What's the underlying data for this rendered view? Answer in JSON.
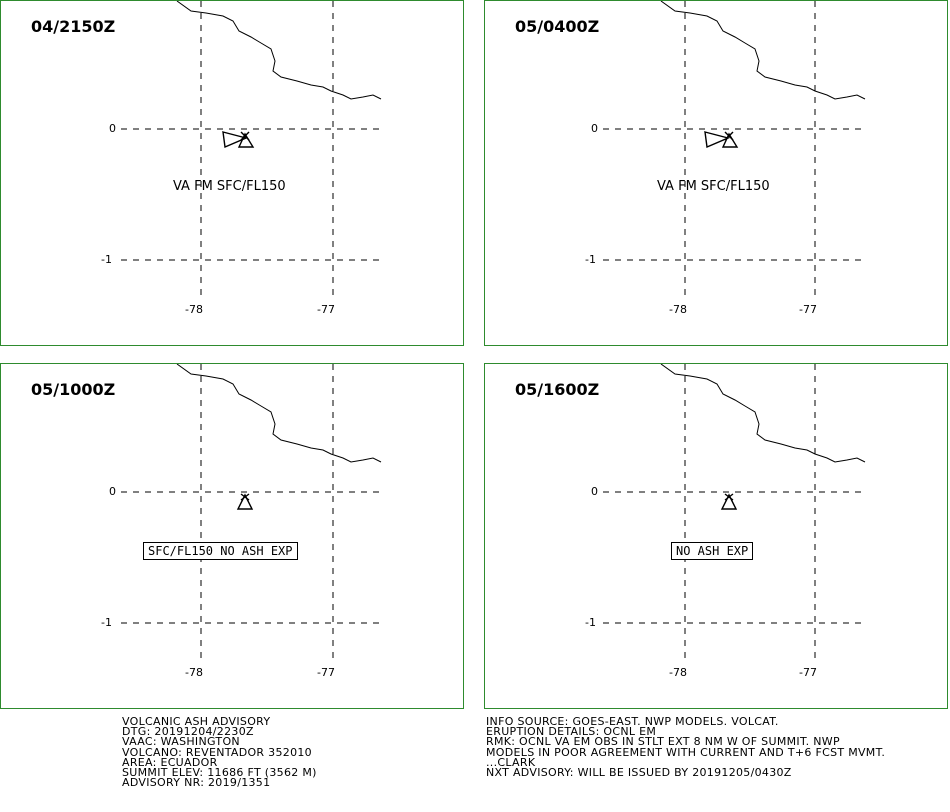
{
  "panels": [
    {
      "time": "04/2150Z",
      "lat_labels": [
        "0",
        "-1"
      ],
      "lon_labels": [
        "-78",
        "-77"
      ],
      "ash_label": "VA FM SFC/FL150",
      "plume_shown": true
    },
    {
      "time": "05/0400Z",
      "lat_labels": [
        "0",
        "-1"
      ],
      "lon_labels": [
        "-78",
        "-77"
      ],
      "ash_label": "VA FM SFC/FL150",
      "plume_shown": true
    },
    {
      "time": "05/1000Z",
      "lat_labels": [
        "0",
        "-1"
      ],
      "lon_labels": [
        "-78",
        "-77"
      ],
      "ash_label": "SFC/FL150 NO ASH EXP",
      "plume_shown": false
    },
    {
      "time": "05/1600Z",
      "lat_labels": [
        "0",
        "-1"
      ],
      "lon_labels": [
        "-78",
        "-77"
      ],
      "ash_label": "NO ASH EXP",
      "plume_shown": false
    }
  ],
  "advisory_left": [
    "VOLCANIC ASH ADVISORY",
    "DTG: 20191204/2230Z",
    "VAAC: WASHINGTON",
    "VOLCANO: REVENTADOR 352010",
    "AREA: ECUADOR",
    "SUMMIT ELEV: 11686 FT (3562 M)",
    "ADVISORY NR: 2019/1351"
  ],
  "advisory_right": [
    "INFO SOURCE: GOES-EAST. NWP MODELS. VOLCAT.",
    "ERUPTION DETAILS: OCNL EM",
    "RMK: OCNL VA EM OBS IN STLT EXT 8 NM W OF SUMMIT. NWP",
    "MODELS IN POOR AGREEMENT WITH CURRENT AND T+6 FCST MVMT.",
    "...CLARK",
    "NXT ADVISORY: WILL BE ISSUED BY 20191205/0430Z"
  ],
  "colors": {
    "panel_border": "#2e8b2e",
    "lines": "#000000",
    "background": "#ffffff"
  }
}
